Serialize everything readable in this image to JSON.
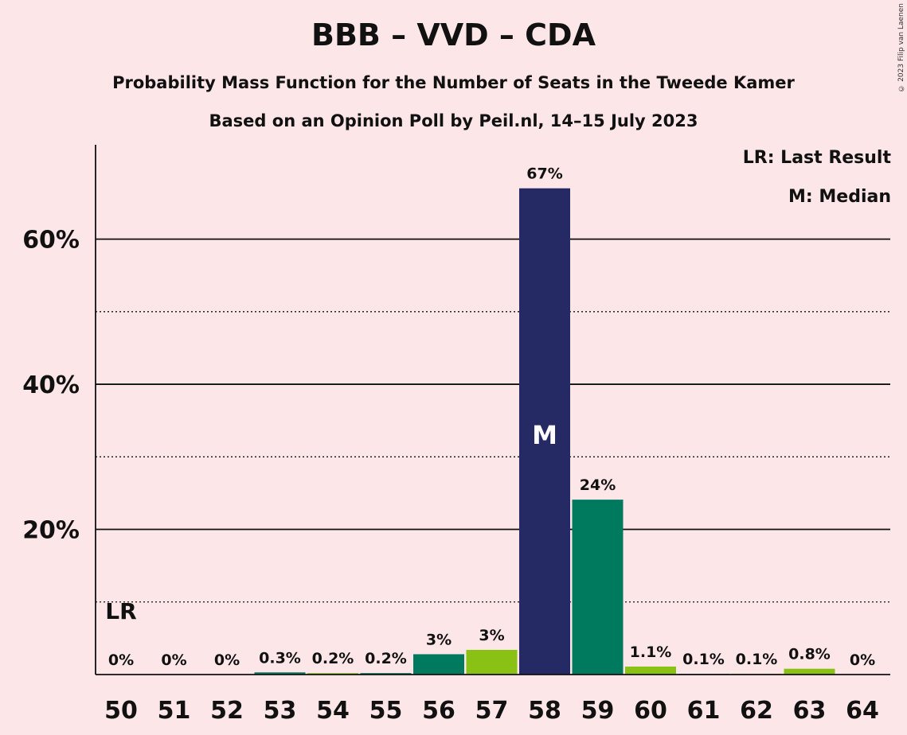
{
  "title": "BBB – VVD – CDA",
  "subtitle1": "Probability Mass Function for the Number of Seats in the Tweede Kamer",
  "subtitle2": "Based on an Opinion Poll by Peil.nl, 14–15 July 2023",
  "legend": {
    "lr": "LR: Last Result",
    "m": "M: Median"
  },
  "copyright": "© 2023 Filip van Laenen",
  "colors": {
    "background": "#fce6e8",
    "median_bar": "#262a64",
    "teal": "#007a5e",
    "green": "#89c214"
  },
  "chart_data": {
    "type": "bar",
    "categories": [
      "50",
      "51",
      "52",
      "53",
      "54",
      "55",
      "56",
      "57",
      "58",
      "59",
      "60",
      "61",
      "62",
      "63",
      "64"
    ],
    "values": [
      0,
      0,
      0,
      0.3,
      0.2,
      0.2,
      3,
      3,
      67,
      24,
      1.1,
      0.1,
      0.1,
      0.8,
      0
    ],
    "plotted_values": [
      0,
      0,
      0,
      0.3,
      0.2,
      0.2,
      2.8,
      3.4,
      67,
      24.1,
      1.1,
      0.1,
      0.1,
      0.8,
      0
    ],
    "data_labels": [
      "0%",
      "0%",
      "0%",
      "0.3%",
      "0.2%",
      "0.2%",
      "3%",
      "3%",
      "67%",
      "24%",
      "1.1%",
      "0.1%",
      "0.1%",
      "0.8%",
      "0%"
    ],
    "bar_colors": [
      "teal",
      "green",
      "teal",
      "teal",
      "green",
      "teal",
      "teal",
      "green",
      "median_bar",
      "teal",
      "green",
      "teal",
      "green",
      "green",
      "teal"
    ],
    "ylim": [
      0,
      73
    ],
    "yticks": [
      20,
      40,
      60
    ],
    "ytick_labels": [
      "20%",
      "40%",
      "60%"
    ],
    "minor_gridlines": [
      10,
      30,
      50
    ],
    "grid": true,
    "last_result": {
      "category": "50",
      "label": "LR"
    },
    "median": {
      "category": "58",
      "label": "M"
    },
    "legend_position": "top-right"
  }
}
